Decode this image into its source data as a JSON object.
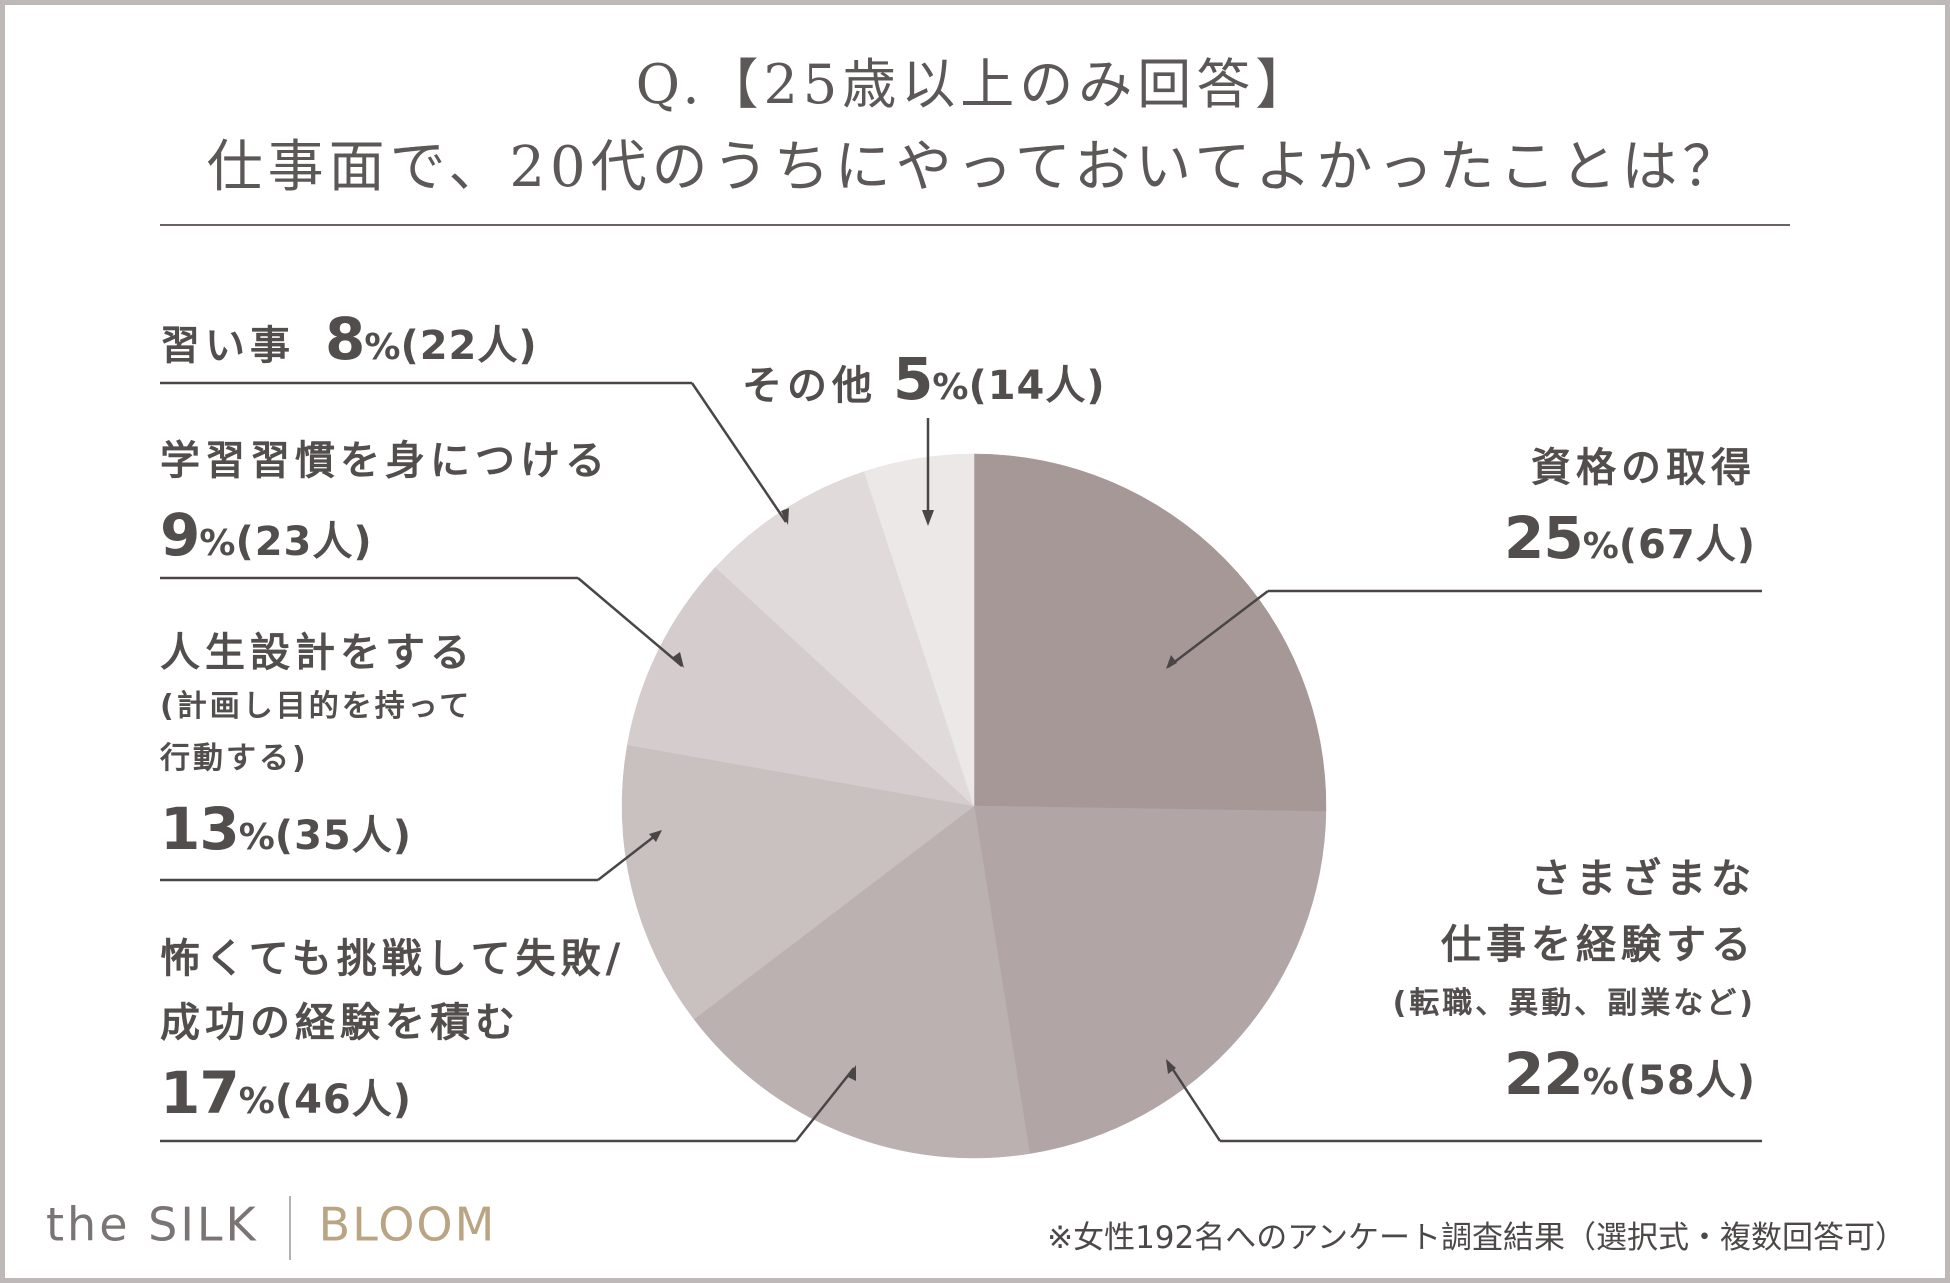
{
  "title_line1": "Q.【25歳以上のみ回答】",
  "title_line2": "仕事面で、20代のうちにやっておいてよかったことは？",
  "brand": {
    "part1": "the SILK",
    "part2": "BLOOM"
  },
  "footnote": "※女性192名へのアンケート調査結果（選択式・複数回答可）",
  "chart_data": {
    "type": "pie",
    "start": "12 o'clock",
    "direction": "clockwise",
    "slices": [
      {
        "label": "資格の取得",
        "note": "",
        "percent": 25,
        "count": 67,
        "count_text": "(67人)",
        "color": "#a79898"
      },
      {
        "label": "さまざまな仕事を経験する",
        "note": "(転職、異動、副業など)",
        "percent": 22,
        "count": 58,
        "count_text": "(58人)",
        "color": "#b2a5a5"
      },
      {
        "label": "怖くても挑戦して失敗/成功の経験を積む",
        "note": "",
        "percent": 17,
        "count": 46,
        "count_text": "(46人)",
        "color": "#bcb1b1"
      },
      {
        "label": "人生設計をする",
        "note": "(計画し目的を持って行動する)",
        "percent": 13,
        "count": 35,
        "count_text": "(35人)",
        "color": "#c9c0c0"
      },
      {
        "label": "学習習慣を身につける",
        "note": "",
        "percent": 9,
        "count": 23,
        "count_text": "(23人)",
        "color": "#d5cdcd"
      },
      {
        "label": "習い事",
        "note": "",
        "percent": 8,
        "count": 22,
        "count_text": "(22人)",
        "color": "#e0dada"
      },
      {
        "label": "その他",
        "note": "",
        "percent": 5,
        "count": 14,
        "count_text": "(14人)",
        "color": "#ece8e8"
      }
    ]
  },
  "labels": {
    "s0": {
      "l1": "資格の取得",
      "pct": "25",
      "cnt": "(67人)"
    },
    "s1": {
      "l1": "さまざまな",
      "l2": "仕事を経験する",
      "note": "(転職、異動、副業など)",
      "pct": "22",
      "cnt": "(58人)"
    },
    "s2": {
      "l1": "怖くても挑戦して失敗/",
      "l2": "成功の経験を積む",
      "pct": "17",
      "cnt": "(46人)"
    },
    "s3": {
      "l1": "人生設計をする",
      "n1": "(計画し目的を持って",
      "n2": "行動する)",
      "pct": "13",
      "cnt": "(35人)"
    },
    "s4": {
      "l1": "学習習慣を身につける",
      "pct": "9",
      "cnt": "(23人)"
    },
    "s5": {
      "l1": "習い事",
      "pct": "8",
      "cnt": "(22人)"
    },
    "s6": {
      "l1": "その他",
      "pct": "5",
      "cnt": "(14人)"
    },
    "pct_sign": "%"
  }
}
